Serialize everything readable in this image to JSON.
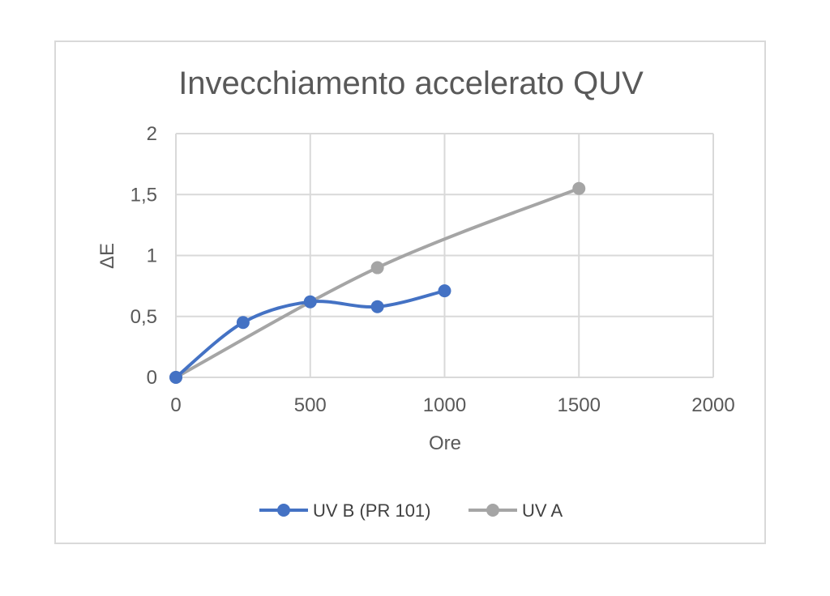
{
  "chart_data": {
    "type": "line",
    "title": "Invecchiamento accelerato QUV",
    "xlabel": "Ore",
    "ylabel": "ΔE",
    "xlim": [
      0,
      2000
    ],
    "ylim": [
      0,
      2
    ],
    "x_ticks": [
      "0",
      "500",
      "1000",
      "1500",
      "2000"
    ],
    "y_ticks": [
      "0",
      "0,5",
      "1",
      "1,5",
      "2"
    ],
    "grid": true,
    "legend_position": "bottom",
    "series": [
      {
        "name": "UV B (PR 101)",
        "color": "#4472c4",
        "smooth": true,
        "points": [
          [
            0,
            0
          ],
          [
            250,
            0.45
          ],
          [
            500,
            0.62
          ],
          [
            750,
            0.58
          ],
          [
            1000,
            0.71
          ]
        ]
      },
      {
        "name": "UV A",
        "color": "#a5a5a5",
        "smooth": true,
        "points": [
          [
            0,
            0
          ],
          [
            750,
            0.9
          ],
          [
            1500,
            1.55
          ]
        ]
      }
    ]
  }
}
